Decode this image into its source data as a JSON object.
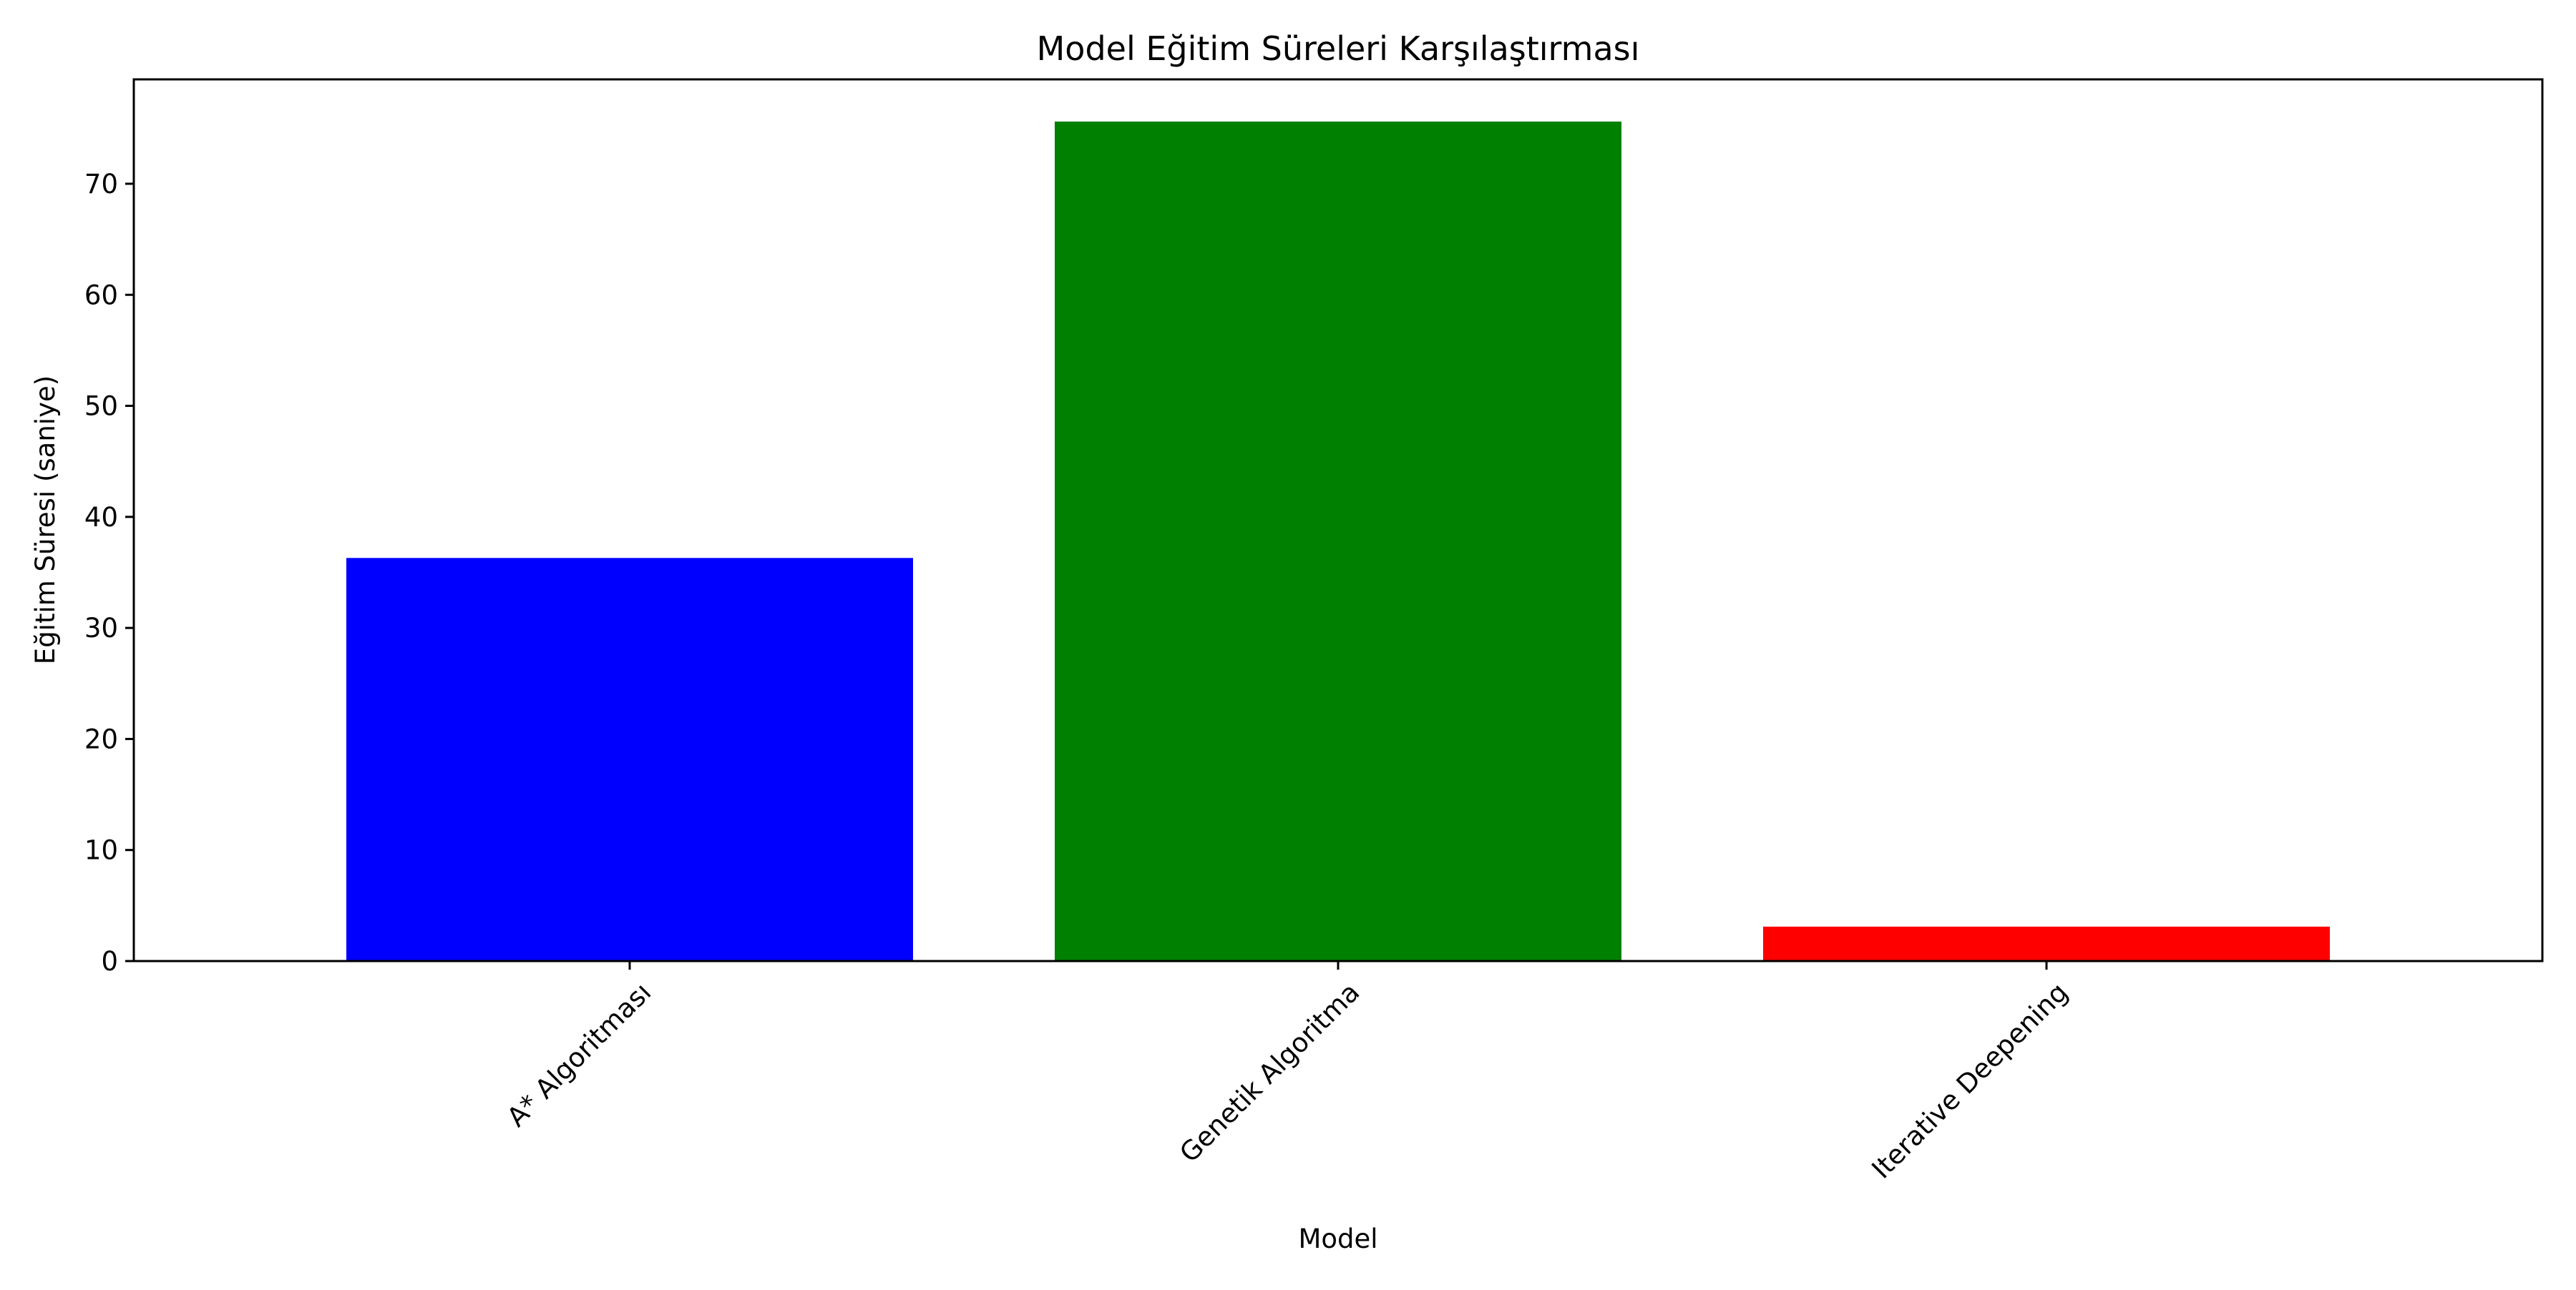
{
  "chart_data": {
    "type": "bar",
    "title": "Model Eğitim Süreleri Karşılaştırması",
    "xlabel": "Model",
    "ylabel": "Eğitim Süresi (saniye)",
    "categories": [
      "A* Algoritması",
      "Genetik Algoritma",
      "Iterative Deepening"
    ],
    "values": [
      36.3,
      75.6,
      3.1
    ],
    "colors": [
      "#0000ff",
      "#008000",
      "#ff0000"
    ],
    "ylim": [
      0,
      79.4
    ],
    "yticks": [
      0,
      10,
      20,
      30,
      40,
      50,
      60,
      70
    ],
    "grid": false,
    "legend": "none"
  }
}
